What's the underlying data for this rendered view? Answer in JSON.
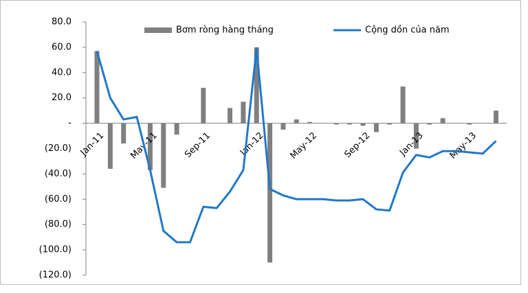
{
  "chart_data": {
    "type": "combo",
    "categories": [
      "Jan-11",
      null,
      null,
      null,
      "May-11",
      null,
      null,
      null,
      "Sep-11",
      null,
      null,
      null,
      "Jan-12",
      null,
      null,
      null,
      "May-12",
      null,
      null,
      null,
      "Sep-12",
      null,
      null,
      null,
      "Jan-13",
      null,
      null,
      null,
      "May-13",
      null,
      null
    ],
    "series": [
      {
        "name": "Bơm ròng hàng tháng",
        "type": "bar",
        "color": "#808080",
        "values": [
          57,
          -36,
          -16,
          0,
          -37,
          -51,
          -9,
          0,
          28,
          0,
          12,
          17,
          60,
          -110,
          -5,
          3,
          1,
          0,
          -1,
          -1,
          -2,
          -7,
          -1,
          29,
          -20,
          -1,
          4,
          0,
          -1,
          0,
          10
        ]
      },
      {
        "name": "Cộng dồn của năm",
        "type": "line",
        "color": "#1f78c8",
        "values": [
          57,
          20,
          3,
          5,
          -37,
          -85,
          -94,
          -94,
          -66,
          -67,
          -54,
          -37,
          59,
          -52,
          -57,
          -60,
          -60,
          -60,
          -61,
          -61,
          -60,
          -68,
          -69,
          -39,
          -25,
          -27,
          -22,
          -22,
          -23,
          -24,
          -14
        ]
      }
    ],
    "ylim": [
      -120,
      80
    ],
    "yticks": [
      {
        "value": 80,
        "label": "80.0"
      },
      {
        "value": 60,
        "label": "60.0"
      },
      {
        "value": 40,
        "label": "40.0"
      },
      {
        "value": 20,
        "label": "20.0"
      },
      {
        "value": 0,
        "label": "-"
      },
      {
        "value": -20,
        "label": "(20.0)"
      },
      {
        "value": -40,
        "label": "(40.0)"
      },
      {
        "value": -60,
        "label": "(60.0)"
      },
      {
        "value": -80,
        "label": "(80.0)"
      },
      {
        "value": -100,
        "label": "(100.0)"
      },
      {
        "value": -120,
        "label": "(120.0)"
      }
    ],
    "grid": false,
    "legend": "top"
  }
}
